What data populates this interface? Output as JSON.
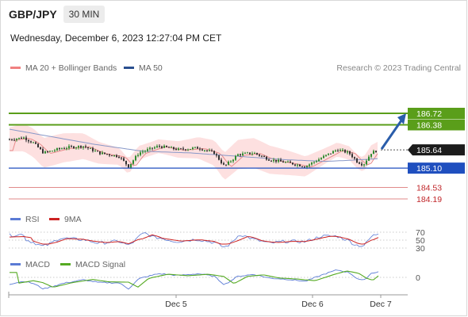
{
  "header": {
    "pair": "GBP/JPY",
    "timeframe": "30 MIN",
    "datetime": "Wednesday, December 6, 2023 12:27:04 PM CET"
  },
  "credit": "Research © 2023 Trading Central",
  "colors": {
    "resistance": "#5a9e1a",
    "support": "#1f4fbf",
    "minor_level": "#e08a8a",
    "minor_text": "#c0262a",
    "bollinger": "#fde0e0",
    "ma20": "#e88c8c",
    "ma50": "#8898c8",
    "bull": "#2e8b2e",
    "bear": "#333333",
    "rsi": "#5b7bd5",
    "ma9": "#cc2222",
    "macd": "#5b7bd5",
    "macd_signal": "#55aa22",
    "arrow": "#2a5daa"
  },
  "chart_data": [
    {
      "type": "line",
      "title": "",
      "series": [
        {
          "name": "MA 20 + Bollinger Bands"
        },
        {
          "name": "MA 50"
        }
      ],
      "levels": [
        {
          "value": "186.72",
          "kind": "resistance"
        },
        {
          "value": "186.38",
          "kind": "resistance"
        },
        {
          "value": "185.64",
          "kind": "current"
        },
        {
          "value": "185.10",
          "kind": "support"
        },
        {
          "value": "184.53",
          "kind": "minor"
        },
        {
          "value": "184.19",
          "kind": "minor"
        }
      ],
      "x_ticks": [
        "Dec 5",
        "Dec 6",
        "Dec 7"
      ],
      "ylim": [
        183.9,
        187.2
      ],
      "forecast": {
        "from": 185.64,
        "to": 186.72,
        "direction": "up"
      }
    },
    {
      "type": "line",
      "series": [
        {
          "name": "RSI"
        },
        {
          "name": "9MA"
        }
      ],
      "y_ticks": [
        "70",
        "50",
        "30"
      ],
      "ylim": [
        20,
        80
      ]
    },
    {
      "type": "line",
      "series": [
        {
          "name": "MACD"
        },
        {
          "name": "MACD Signal"
        }
      ],
      "y_ticks": [
        "0"
      ]
    }
  ]
}
